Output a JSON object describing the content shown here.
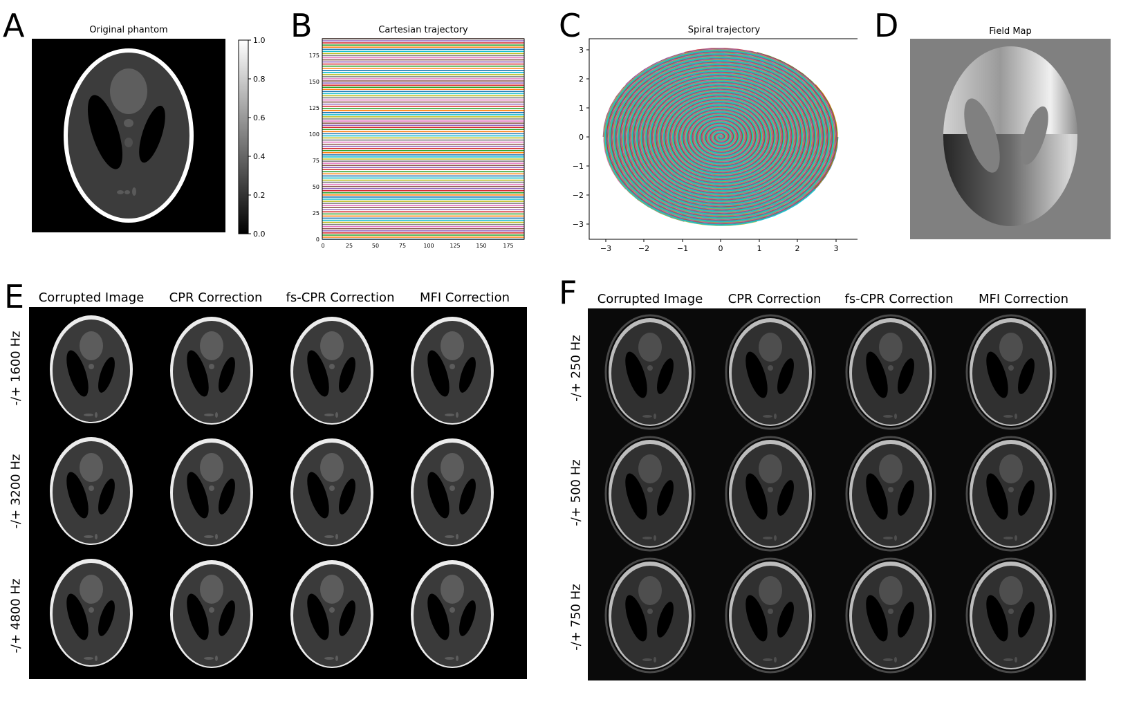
{
  "panelA": {
    "letter": "A",
    "title": "Original phantom",
    "colorbar_ticks": [
      "0.0",
      "0.2",
      "0.4",
      "0.6",
      "0.8",
      "1.0"
    ]
  },
  "panelB": {
    "letter": "B",
    "title": "Cartesian trajectory",
    "xticks": [
      "0",
      "25",
      "50",
      "75",
      "100",
      "125",
      "150",
      "175"
    ],
    "yticks": [
      "0",
      "25",
      "50",
      "75",
      "100",
      "125",
      "150",
      "175"
    ]
  },
  "panelC": {
    "letter": "C",
    "title": "Spiral trajectory",
    "xticks": [
      "−3",
      "−2",
      "−1",
      "0",
      "1",
      "2",
      "3"
    ],
    "yticks": [
      "−3",
      "−2",
      "−1",
      "0",
      "1",
      "2",
      "3"
    ]
  },
  "panelD": {
    "letter": "D",
    "title": "Field Map"
  },
  "panelE": {
    "letter": "E",
    "columns": [
      "Corrupted Image",
      "CPR Correction",
      "fs-CPR Correction",
      "MFI Correction"
    ],
    "rows": [
      "-/+ 1600 Hz",
      "-/+ 3200 Hz",
      "-/+ 4800 Hz"
    ]
  },
  "panelF": {
    "letter": "F",
    "columns": [
      "Corrupted Image",
      "CPR Correction",
      "fs-CPR Correction",
      "MFI Correction"
    ],
    "rows": [
      "-/+ 250 Hz",
      "-/+ 500 Hz",
      "-/+ 750 Hz"
    ]
  },
  "colors": {
    "trajectory": [
      "#1f77b4",
      "#ff7f0e",
      "#2ca02c",
      "#d62728",
      "#9467bd",
      "#8c564b",
      "#e377c2",
      "#7f7f7f",
      "#bcbd22",
      "#17becf"
    ]
  }
}
